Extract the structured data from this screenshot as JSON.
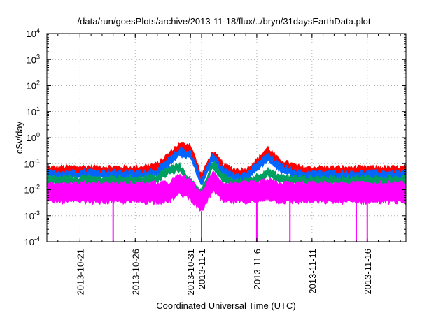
{
  "chart_data": {
    "type": "line",
    "title": "/data/run/goesPlots/archive/2013-11-18/flux/../bryn/31daysEarthData.plot",
    "xlabel": "Coordinated Universal Time (UTC)",
    "ylabel": "cSv/day",
    "y_scale": "log",
    "ylim": [
      0.0001,
      10000
    ],
    "xlim": [
      "2013-10-18T00:00",
      "2013-11-19T12:00"
    ],
    "grid": true,
    "y_ticks": [
      {
        "base": "10",
        "exp": "-4",
        "value": 0.0001
      },
      {
        "base": "10",
        "exp": "-3",
        "value": 0.001
      },
      {
        "base": "10",
        "exp": "-2",
        "value": 0.01
      },
      {
        "base": "10",
        "exp": "-1",
        "value": 0.1
      },
      {
        "base": "10",
        "exp": "0",
        "value": 1
      },
      {
        "base": "10",
        "exp": "1",
        "value": 10
      },
      {
        "base": "10",
        "exp": "2",
        "value": 100
      },
      {
        "base": "10",
        "exp": "3",
        "value": 1000
      },
      {
        "base": "10",
        "exp": "4",
        "value": 10000
      }
    ],
    "x_ticks": [
      {
        "label": "2013-10-21",
        "date": "2013-10-21"
      },
      {
        "label": "2013-10-26",
        "date": "2013-10-26"
      },
      {
        "label": "2013-10-31",
        "date": "2013-10-31"
      },
      {
        "label": "2013-11-1",
        "date": "2013-11-01"
      },
      {
        "label": "2013-11-6",
        "date": "2013-11-06"
      },
      {
        "label": "2013-11-11",
        "date": "2013-11-11"
      },
      {
        "label": "2013-11-16",
        "date": "2013-11-16"
      }
    ],
    "series": [
      {
        "color": "#ff0000",
        "x": [
          "2013-10-18",
          "2013-10-22",
          "2013-10-26",
          "2013-10-28",
          "2013-10-29",
          "2013-10-30",
          "2013-10-31",
          "2013-11-01",
          "2013-11-02",
          "2013-11-03",
          "2013-11-04",
          "2013-11-05",
          "2013-11-06",
          "2013-11-07",
          "2013-11-08",
          "2013-11-10",
          "2013-11-13",
          "2013-11-16",
          "2013-11-19"
        ],
        "y": [
          0.06,
          0.065,
          0.06,
          0.08,
          0.2,
          0.5,
          0.45,
          0.03,
          0.25,
          0.08,
          0.05,
          0.05,
          0.12,
          0.35,
          0.12,
          0.06,
          0.06,
          0.06,
          0.06
        ]
      },
      {
        "color": "#0066ff",
        "x": [
          "2013-10-18",
          "2013-10-22",
          "2013-10-26",
          "2013-10-28",
          "2013-10-29",
          "2013-10-30",
          "2013-10-31",
          "2013-11-01",
          "2013-11-02",
          "2013-11-03",
          "2013-11-04",
          "2013-11-05",
          "2013-11-06",
          "2013-11-07",
          "2013-11-08",
          "2013-11-10",
          "2013-11-13",
          "2013-11-16",
          "2013-11-19"
        ],
        "y": [
          0.04,
          0.045,
          0.04,
          0.05,
          0.12,
          0.3,
          0.25,
          0.02,
          0.2,
          0.05,
          0.035,
          0.035,
          0.08,
          0.2,
          0.08,
          0.04,
          0.04,
          0.04,
          0.04
        ]
      },
      {
        "color": "#00a060",
        "x": [
          "2013-10-18",
          "2013-10-22",
          "2013-10-26",
          "2013-10-28",
          "2013-10-29",
          "2013-10-30",
          "2013-10-31",
          "2013-11-01",
          "2013-11-02",
          "2013-11-03",
          "2013-11-04",
          "2013-11-05",
          "2013-11-06",
          "2013-11-07",
          "2013-11-08",
          "2013-11-10",
          "2013-11-13",
          "2013-11-16",
          "2013-11-19"
        ],
        "y": [
          0.025,
          0.025,
          0.025,
          0.03,
          0.06,
          0.08,
          0.02,
          0.008,
          0.1,
          0.03,
          0.02,
          0.02,
          0.03,
          0.05,
          0.03,
          0.025,
          0.025,
          0.025,
          0.025
        ]
      },
      {
        "color": "#ff00ff",
        "x": [
          "2013-10-18",
          "2013-10-22",
          "2013-10-26",
          "2013-10-28",
          "2013-10-29",
          "2013-10-30",
          "2013-10-31",
          "2013-11-01",
          "2013-11-02",
          "2013-11-03",
          "2013-11-04",
          "2013-11-05",
          "2013-11-06",
          "2013-11-07",
          "2013-11-08",
          "2013-11-10",
          "2013-11-13",
          "2013-11-16",
          "2013-11-19"
        ],
        "y": [
          0.015,
          0.015,
          0.015,
          0.015,
          0.015,
          0.03,
          0.02,
          0.006,
          0.04,
          0.015,
          0.015,
          0.015,
          0.015,
          0.02,
          0.015,
          0.015,
          0.015,
          0.015,
          0.015
        ],
        "dropouts": [
          "2013-10-24",
          "2013-11-01",
          "2013-11-06",
          "2013-11-09",
          "2013-11-15",
          "2013-11-16"
        ]
      }
    ]
  }
}
